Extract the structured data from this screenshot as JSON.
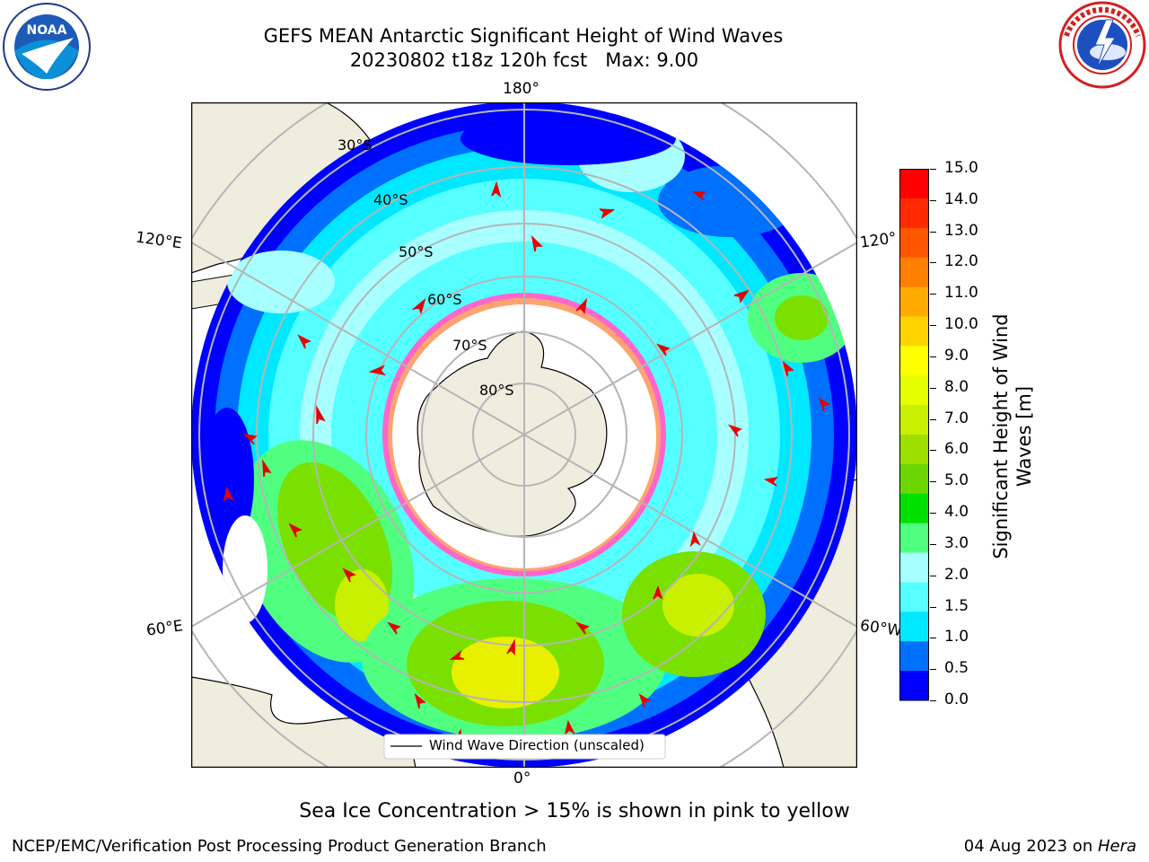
{
  "title": "GEFS MEAN Antarctic Significant Height of Wind Waves",
  "subtitle": "20230802 t18z 120h fcst   Max: 9.00",
  "logos": {
    "left": "noaa-logo",
    "right": "national-weather-service-logo"
  },
  "map": {
    "projection": "south-polar-stereographic",
    "longitude_labels": {
      "top": "180°",
      "bottom": "0°",
      "left_upper": "120°E",
      "left_lower": "60°E",
      "right_upper": "120°",
      "right_lower": "60°W"
    },
    "latitude_labels": [
      "30°S",
      "40°S",
      "50°S",
      "60°S",
      "70°S",
      "80°S"
    ],
    "legend_label": "Wind Wave Direction (unscaled)",
    "arrow_color": "#e60000",
    "land_color": "#efedde",
    "ice_colors": [
      "#ff66cc",
      "#ffcc33"
    ],
    "ocean_colors": [
      "#0000ff",
      "#0070ff",
      "#00e8ff",
      "#55ffff",
      "#a8ffff",
      "#50ff80",
      "#00e000",
      "#7ae000",
      "#c8f000",
      "#eeff00"
    ]
  },
  "colorbar": {
    "title": "Significant Height of Wind Waves [m]",
    "title_line1": "Significant Height of Wind",
    "title_line2": "Waves [m]",
    "ticks": [
      "15.0",
      "14.0",
      "13.0",
      "12.0",
      "11.0",
      "10.0",
      "9.0",
      "8.0",
      "7.0",
      "6.0",
      "5.0",
      "4.0",
      "3.0",
      "2.0",
      "1.5",
      "1.0",
      "0.5",
      "0.0"
    ],
    "colors_top_to_bottom": [
      "#ff0000",
      "#ff2a00",
      "#ff5500",
      "#ff7f00",
      "#ffaa00",
      "#ffd200",
      "#ffff00",
      "#e6ff00",
      "#c8f000",
      "#9de000",
      "#6ad800",
      "#00e000",
      "#50ff80",
      "#a8ffff",
      "#55ffff",
      "#00e8ff",
      "#0070ff",
      "#0000ff"
    ]
  },
  "ice_note": "Sea Ice Concentration > 15% is shown in pink to yellow",
  "footer": {
    "left": "NCEP/EMC/Verification Post Processing Product Generation Branch",
    "right_date": "04 Aug 2023 on ",
    "right_host": "Hera"
  }
}
